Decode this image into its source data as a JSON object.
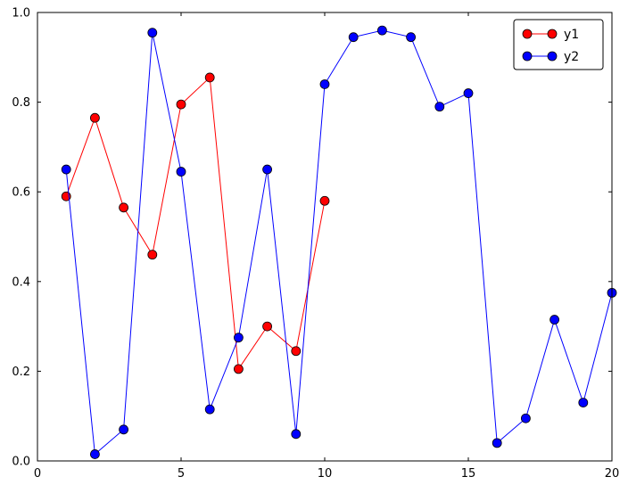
{
  "chart_data": {
    "type": "line",
    "title": "",
    "xlabel": "",
    "ylabel": "",
    "xlim": [
      0,
      20
    ],
    "ylim": [
      0.0,
      1.0
    ],
    "grid": false,
    "background_color": "#ffffff",
    "axis_color": "#000000",
    "marker": "circle",
    "marker_edge_color": "#000000",
    "legend_position": "upper right",
    "x_tick_values": [
      0,
      5,
      10,
      15,
      20
    ],
    "x_tick_labels": [
      "0",
      "5",
      "10",
      "15",
      "20"
    ],
    "y_tick_values": [
      0.0,
      0.2,
      0.4,
      0.6,
      0.8,
      1.0
    ],
    "y_tick_labels": [
      "0.0",
      "0.2",
      "0.4",
      "0.6",
      "0.8",
      "1.0"
    ],
    "series": [
      {
        "name": "y1",
        "color": "#ff0000",
        "x": [
          1,
          2,
          3,
          4,
          5,
          6,
          7,
          8,
          9,
          10
        ],
        "y": [
          0.59,
          0.765,
          0.565,
          0.46,
          0.795,
          0.855,
          0.205,
          0.3,
          0.245,
          0.58
        ]
      },
      {
        "name": "y2",
        "color": "#0000ff",
        "x": [
          1,
          2,
          3,
          4,
          5,
          6,
          7,
          8,
          9,
          10,
          11,
          12,
          13,
          14,
          15,
          16,
          17,
          18,
          19,
          20
        ],
        "y": [
          0.65,
          0.015,
          0.07,
          0.955,
          0.645,
          0.115,
          0.275,
          0.65,
          0.06,
          0.84,
          0.945,
          0.96,
          0.945,
          0.79,
          0.82,
          0.04,
          0.095,
          0.315,
          0.13,
          0.375
        ]
      }
    ]
  }
}
